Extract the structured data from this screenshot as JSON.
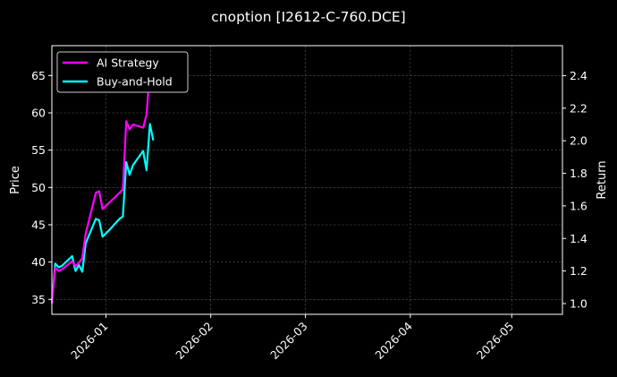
{
  "chart_data": {
    "type": "line",
    "title": "cnoption [I2612-C-760.DCE]",
    "ylabel_left": "Price",
    "ylabel_right": "Return",
    "xlim": [
      "2025-12-16",
      "2026-05-16"
    ],
    "ylim_left": [
      33,
      69
    ],
    "ylim_right": [
      0.934,
      2.584
    ],
    "x_ticks": [
      "2026-01",
      "2026-02",
      "2026-03",
      "2026-04",
      "2026-05"
    ],
    "y_ticks_left": [
      35,
      40,
      45,
      50,
      55,
      60,
      65
    ],
    "y_ticks_right": [
      "1.0",
      "1.2",
      "1.4",
      "1.6",
      "1.8",
      "2.0",
      "2.2",
      "2.4"
    ],
    "grid": true,
    "legend": {
      "placement": "top-left"
    },
    "series": [
      {
        "name": "AI Strategy",
        "color": "#ff00ff",
        "axis": "right",
        "x": [
          "2025-12-16",
          "2025-12-17",
          "2025-12-18",
          "2025-12-19",
          "2025-12-22",
          "2025-12-23",
          "2025-12-24",
          "2025-12-25",
          "2025-12-26",
          "2025-12-29",
          "2025-12-30",
          "2025-12-31",
          "2026-01-02",
          "2026-01-05",
          "2026-01-06",
          "2026-01-07",
          "2026-01-08",
          "2026-01-09",
          "2026-01-12",
          "2026-01-13",
          "2026-01-14"
        ],
        "values": [
          1.0,
          1.22,
          1.2,
          1.21,
          1.26,
          1.23,
          1.25,
          1.28,
          1.43,
          1.68,
          1.69,
          1.58,
          1.62,
          1.68,
          1.7,
          2.12,
          2.07,
          2.1,
          2.08,
          2.16,
          2.44
        ]
      },
      {
        "name": "Buy-and-Hold",
        "color": "#00ffff",
        "axis": "left",
        "x": [
          "2025-12-16",
          "2025-12-17",
          "2025-12-18",
          "2025-12-19",
          "2025-12-22",
          "2025-12-23",
          "2025-12-24",
          "2025-12-25",
          "2025-12-26",
          "2025-12-29",
          "2025-12-30",
          "2025-12-31",
          "2026-01-02",
          "2026-01-05",
          "2026-01-06",
          "2026-01-07",
          "2026-01-08",
          "2026-01-09",
          "2026-01-12",
          "2026-01-13",
          "2026-01-14",
          "2026-01-15"
        ],
        "values": [
          34.5,
          39.8,
          39.3,
          39.5,
          40.8,
          38.8,
          39.6,
          38.7,
          42.5,
          45.8,
          45.6,
          43.4,
          44.3,
          45.8,
          46.1,
          53.4,
          51.7,
          53.0,
          54.9,
          52.3,
          58.5,
          56.3
        ]
      }
    ]
  }
}
